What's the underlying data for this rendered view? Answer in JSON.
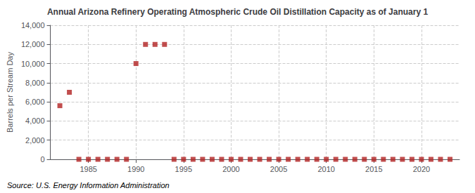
{
  "chart_data": {
    "type": "scatter",
    "title": "Annual Arizona Refinery Operating Atmospheric Crude Oil Distillation Capacity as of January 1",
    "ylabel": "Barrels per Stream Day",
    "annotation": "Source: U.S. Energy Information Administration",
    "x": [
      1982,
      1983,
      1984,
      1985,
      1986,
      1987,
      1988,
      1989,
      1990,
      1991,
      1992,
      1993,
      1994,
      1995,
      1996,
      1997,
      1998,
      1999,
      2000,
      2001,
      2002,
      2003,
      2004,
      2005,
      2006,
      2007,
      2008,
      2009,
      2010,
      2011,
      2012,
      2013,
      2014,
      2015,
      2016,
      2017,
      2018,
      2019,
      2020,
      2021,
      2022,
      2023
    ],
    "values": [
      5600,
      7000,
      0,
      0,
      0,
      0,
      0,
      0,
      10000,
      12000,
      12000,
      12000,
      0,
      0,
      0,
      0,
      0,
      0,
      0,
      0,
      0,
      0,
      0,
      0,
      0,
      0,
      0,
      0,
      0,
      0,
      0,
      0,
      0,
      0,
      0,
      0,
      0,
      0,
      0,
      0,
      0,
      0
    ],
    "color": "#b22222",
    "marker": "square",
    "xlim": [
      1981,
      2024
    ],
    "xticks": [
      1985,
      1990,
      1995,
      2000,
      2005,
      2010,
      2015,
      2020
    ],
    "ylim": [
      0,
      14000
    ],
    "yticks": [
      0,
      {
        "value": 2000,
        "label": "2,000"
      },
      {
        "value": 4000,
        "label": "4,000"
      },
      {
        "value": 6000,
        "label": "6,000"
      },
      {
        "value": 8000,
        "label": "8,000"
      },
      {
        "value": 10000,
        "label": "10,000"
      },
      {
        "value": 12000,
        "label": "12,000"
      },
      {
        "value": 14000,
        "label": "14,000"
      }
    ],
    "grid": true
  }
}
